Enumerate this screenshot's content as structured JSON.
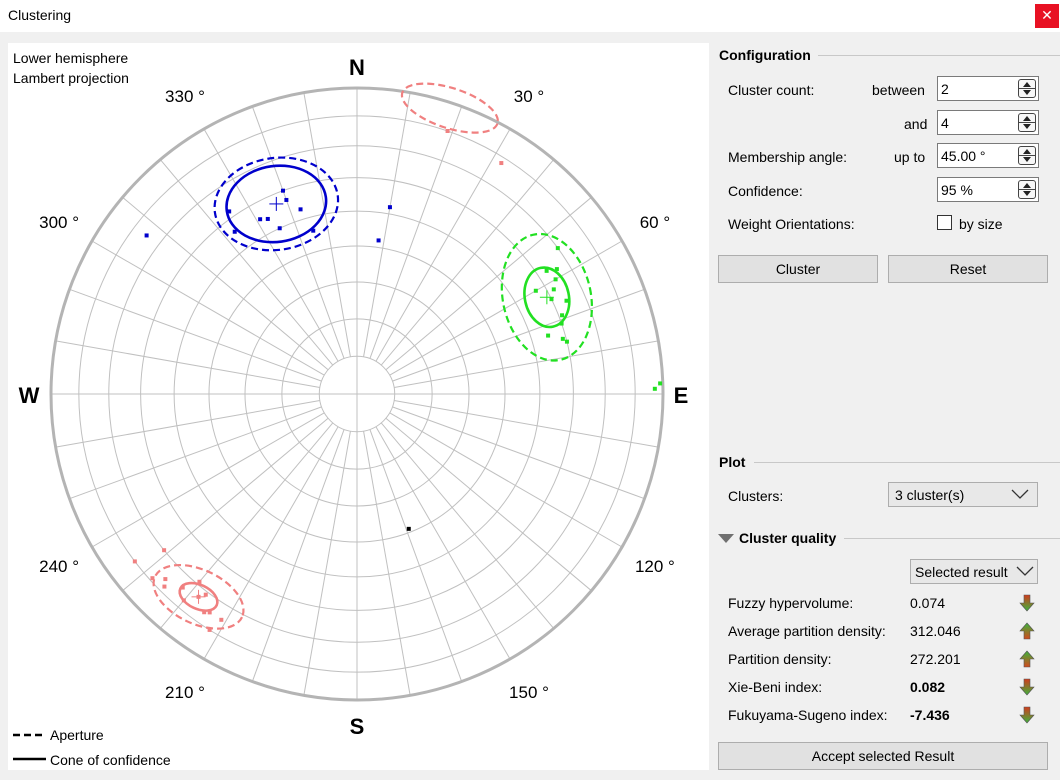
{
  "window": {
    "title": "Clustering",
    "close_glyph": "✕"
  },
  "plot": {
    "header": [
      "Lower hemisphere",
      "Lambert projection"
    ],
    "cardinals": {
      "n": "N",
      "e": "E",
      "s": "S",
      "w": "W"
    },
    "angle_labels": [
      {
        "angle": 330,
        "text": "330 °"
      },
      {
        "angle": 30,
        "text": "30 °"
      },
      {
        "angle": 300,
        "text": "300 °"
      },
      {
        "angle": 60,
        "text": "60 °"
      },
      {
        "angle": 240,
        "text": "240 °"
      },
      {
        "angle": 120,
        "text": "120 °"
      },
      {
        "angle": 210,
        "text": "210 °"
      },
      {
        "angle": 150,
        "text": "150 °"
      }
    ],
    "legend": {
      "aperture": "Aperture",
      "cone": "Cone of confidence"
    },
    "colors": {
      "blue": "#0000cc",
      "green": "#22e022",
      "pink": "#f08080",
      "black": "#000000",
      "grid": "#c0c0c0"
    },
    "clusters": [
      {
        "color": "blue",
        "trend": 337,
        "plunge": 33,
        "aperture_rx": 62,
        "aperture_ry": 46,
        "cone_rx": 50,
        "cone_ry": 38,
        "rotation": -8,
        "points": [
          [
            323,
            34
          ],
          [
            340,
            30
          ],
          [
            325,
            28
          ],
          [
            345,
            44
          ],
          [
            343,
            37
          ],
          [
            331,
            35
          ],
          [
            8,
            48
          ],
          [
            10,
            38
          ],
          [
            307,
            15
          ],
          [
            335,
            40
          ],
          [
            340,
            33
          ],
          [
            333,
            36
          ]
        ]
      },
      {
        "color": "green",
        "trend": 63,
        "plunge": 31,
        "aperture_rx": 44,
        "aperture_ry": 64,
        "cone_rx": 22,
        "cone_ry": 30,
        "rotation": -12,
        "points": [
          [
            54,
            20
          ],
          [
            58,
            24
          ],
          [
            60,
            26
          ],
          [
            62,
            28
          ],
          [
            57,
            27
          ],
          [
            71,
            30
          ],
          [
            75,
            31
          ],
          [
            73,
            35
          ],
          [
            76,
            30
          ],
          [
            69,
            29
          ],
          [
            89,
            3
          ],
          [
            88,
            1
          ],
          [
            60,
            33
          ],
          [
            64,
            30
          ],
          [
            66,
            26
          ]
        ]
      },
      {
        "color": "pink",
        "trend": 218,
        "plunge": 17,
        "aperture_rx": 48,
        "aperture_ry": 27,
        "cone_rx": 20,
        "cone_ry": 12,
        "rotation": 25,
        "points": [
          [
            212,
            10
          ],
          [
            218,
            17
          ],
          [
            214,
            15
          ],
          [
            220,
            13
          ],
          [
            225,
            12
          ],
          [
            217,
            19
          ],
          [
            222,
            16
          ],
          [
            228,
            11
          ],
          [
            231,
            20
          ],
          [
            211,
            15
          ],
          [
            233,
            10
          ],
          [
            220,
            21
          ],
          [
            226,
            14
          ],
          [
            215,
            14
          ]
        ]
      },
      {
        "color": "pink",
        "trend": 18,
        "plunge": 2,
        "aperture_rx": 50,
        "aperture_ry": 20,
        "cone_rx": 0,
        "cone_ry": 0,
        "rotation": 18,
        "points": [
          [
            19,
            10
          ],
          [
            32,
            12
          ]
        ]
      }
    ],
    "loose_points": [
      {
        "color": "black",
        "trend": 159,
        "plunge": 51
      }
    ]
  },
  "configuration": {
    "title": "Configuration",
    "cluster_count_label": "Cluster count:",
    "between_label": "between",
    "between_value": "2",
    "and_label": "and",
    "and_value": "4",
    "membership_label": "Membership angle:",
    "upto_label": "up to",
    "membership_value": "45.00 °",
    "confidence_label": "Confidence:",
    "confidence_value": "95 %",
    "weight_label": "Weight Orientations:",
    "by_size_label": "by size",
    "by_size_checked": false,
    "cluster_button": "Cluster",
    "reset_button": "Reset"
  },
  "plot_group": {
    "title": "Plot",
    "clusters_label": "Clusters:",
    "clusters_value": "3 cluster(s)"
  },
  "quality": {
    "title": "Cluster quality",
    "result_select": "Selected result",
    "metrics": [
      {
        "label": "Fuzzy hypervolume:",
        "value": "0.074",
        "bold": false,
        "direction": "down"
      },
      {
        "label": "Average partition density:",
        "value": "312.046",
        "bold": false,
        "direction": "up"
      },
      {
        "label": "Partition density:",
        "value": "272.201",
        "bold": false,
        "direction": "up"
      },
      {
        "label": "Xie-Beni index:",
        "value": "0.082",
        "bold": true,
        "direction": "down"
      },
      {
        "label": "Fukuyama-Sugeno index:",
        "value": "-7.436",
        "bold": true,
        "direction": "down"
      }
    ],
    "accept_button": "Accept selected Result"
  }
}
